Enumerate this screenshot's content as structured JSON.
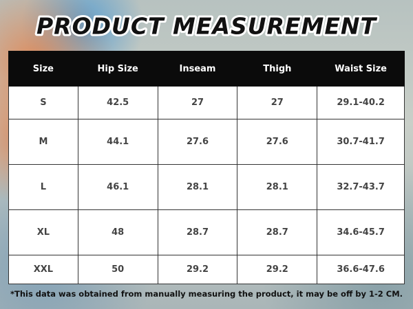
{
  "header": {
    "title": "PRODUCT MEASUREMENT"
  },
  "table": {
    "columns": [
      "Size",
      "Hip Size",
      "Inseam",
      "Thigh",
      "Waist Size"
    ],
    "rows": [
      [
        "S",
        42.5,
        27,
        27,
        "29.1-40.2"
      ],
      [
        "M",
        44.1,
        27.6,
        27.6,
        "30.7-41.7"
      ],
      [
        "L",
        46.1,
        28.1,
        28.1,
        "32.7-43.7"
      ],
      [
        "XL",
        48,
        28.7,
        28.7,
        "34.6-45.7"
      ],
      [
        "XXL",
        50,
        29.2,
        29.2,
        "36.6-47.6"
      ]
    ]
  },
  "footnote": "*This data was obtained from manually measuring the product, it may be off by 1-2 CM."
}
